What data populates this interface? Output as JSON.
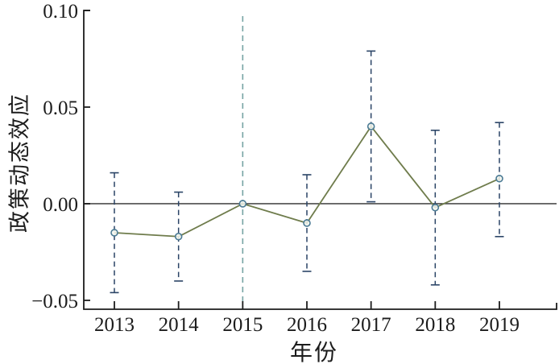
{
  "chart_data": {
    "type": "line",
    "title": "",
    "xlabel": "年份",
    "ylabel": "政策动态效应",
    "x": [
      2013,
      2014,
      2015,
      2016,
      2017,
      2018,
      2019
    ],
    "series": [
      {
        "name": "政策动态效应",
        "values": [
          -0.015,
          -0.017,
          0.0,
          -0.01,
          0.04,
          -0.002,
          0.013
        ]
      }
    ],
    "ci_lower": [
      -0.046,
      -0.04,
      null,
      -0.035,
      0.001,
      -0.042,
      -0.017
    ],
    "ci_upper": [
      0.016,
      0.006,
      null,
      0.015,
      0.079,
      0.038,
      0.042
    ],
    "reference_year": 2015,
    "zero_line": 0,
    "ylim": [
      -0.0546,
      0.1
    ],
    "yticks": {
      "values": [
        0.1,
        0.05,
        0.0,
        -0.05
      ],
      "labels": [
        "0.10",
        "0.05",
        "0.00",
        "−0.05"
      ]
    },
    "grid": false,
    "legend_position": "none",
    "colors": {
      "line": "#6f7c4c",
      "marker_edge": "#4a7a94",
      "marker_fill": "#f3f6ef",
      "error_bar": "#2a4466",
      "reference_line": "#76a3a3",
      "zero_line": "#2f2f2f",
      "axis": "#1c1c1c",
      "text": "#1c1c1c"
    }
  }
}
